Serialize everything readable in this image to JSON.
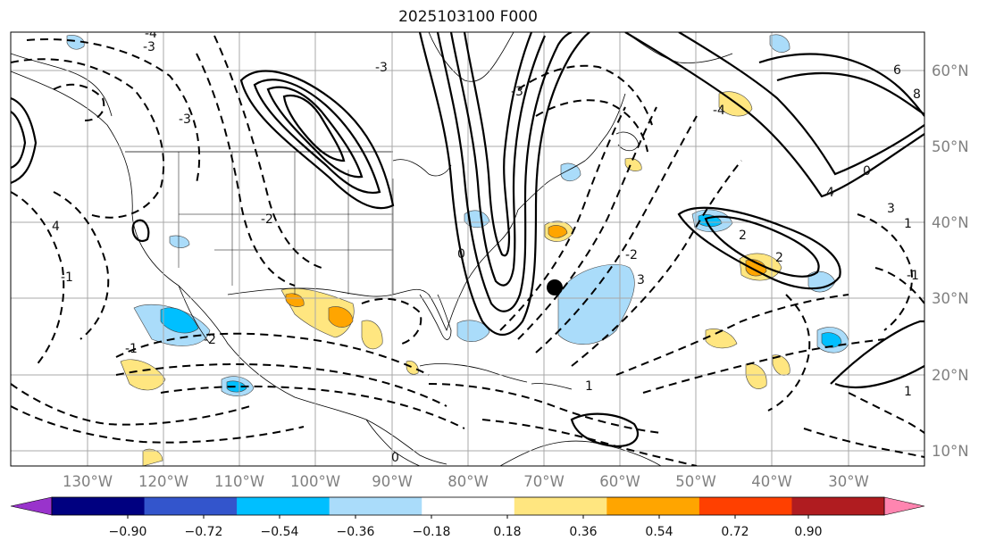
{
  "title": "2025103100 F000",
  "map": {
    "longitude_labels": [
      "130°W",
      "120°W",
      "110°W",
      "100°W",
      "90°W",
      "80°W",
      "70°W",
      "60°W",
      "50°W",
      "40°W",
      "30°W"
    ],
    "latitude_labels": [
      "60°N",
      "50°N",
      "40°N",
      "30°N",
      "20°N",
      "10°N"
    ],
    "gridlines": true,
    "contour_labels": [
      "-3",
      "-4",
      "-3",
      "-3",
      "-2",
      "-1",
      "-1",
      "0",
      "0",
      "1",
      "1",
      "1",
      "2",
      "2",
      "3",
      "3",
      "4",
      "4",
      "6",
      "8",
      "0",
      "-1",
      "-2",
      "-2",
      "-3",
      "-4"
    ],
    "marker": "black-dot"
  },
  "colorbar": {
    "tick_labels": [
      "−0.90",
      "−0.72",
      "−0.54",
      "−0.36",
      "−0.18",
      "0.18",
      "0.36",
      "0.54",
      "0.72",
      "0.90"
    ],
    "colors": [
      "#9933cc",
      "#000080",
      "#3355cc",
      "#00bfff",
      "#aadcfa",
      "#ffffff",
      "#ffe680",
      "#ffa500",
      "#ff4000",
      "#b01c20",
      "#ff85b0"
    ],
    "extend": "both"
  }
}
